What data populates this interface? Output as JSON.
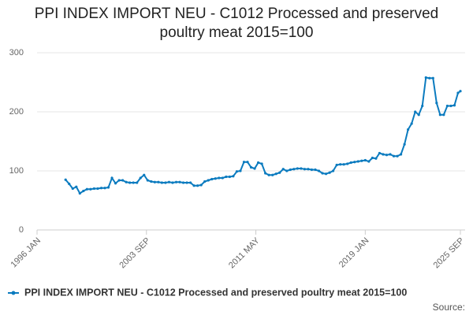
{
  "chart_data": {
    "type": "line",
    "title": "PPI INDEX IMPORT NEU - C1012 Processed and preserved poultry meat 2015=100",
    "source": "Source:",
    "xlim": [
      "1996 JAN",
      "2025 SEP"
    ],
    "xticks": [
      "1996 JAN",
      "2003 SEP",
      "2011 MAY",
      "2019 JAN",
      "2025 SEP"
    ],
    "ylim": [
      0,
      300
    ],
    "yticks": [
      0,
      100,
      200,
      300
    ],
    "grid": true,
    "legend": "bottom",
    "x": [
      "1998 JAN",
      "1998 APR",
      "1998 JUL",
      "1998 OCT",
      "1999 JAN",
      "1999 APR",
      "1999 JUL",
      "1999 OCT",
      "2000 JAN",
      "2000 APR",
      "2000 JUL",
      "2000 OCT",
      "2001 JAN",
      "2001 APR",
      "2001 JUL",
      "2001 OCT",
      "2002 JAN",
      "2002 APR",
      "2002 JUL",
      "2002 OCT",
      "2003 JAN",
      "2003 APR",
      "2003 JUL",
      "2003 OCT",
      "2004 JAN",
      "2004 APR",
      "2004 JUL",
      "2004 OCT",
      "2005 JAN",
      "2005 APR",
      "2005 JUL",
      "2005 OCT",
      "2006 JAN",
      "2006 APR",
      "2006 JUL",
      "2006 OCT",
      "2007 JAN",
      "2007 APR",
      "2007 JUL",
      "2007 OCT",
      "2008 JAN",
      "2008 APR",
      "2008 JUL",
      "2008 OCT",
      "2009 JAN",
      "2009 APR",
      "2009 JUL",
      "2009 OCT",
      "2010 JAN",
      "2010 APR",
      "2010 JUL",
      "2010 OCT",
      "2011 JAN",
      "2011 APR",
      "2011 JUL",
      "2011 OCT",
      "2012 JAN",
      "2012 APR",
      "2012 JUL",
      "2012 OCT",
      "2013 JAN",
      "2013 APR",
      "2013 JUL",
      "2013 OCT",
      "2014 JAN",
      "2014 APR",
      "2014 JUL",
      "2014 OCT",
      "2015 JAN",
      "2015 APR",
      "2015 JUL",
      "2015 OCT",
      "2016 JAN",
      "2016 APR",
      "2016 JUL",
      "2016 OCT",
      "2017 JAN",
      "2017 APR",
      "2017 JUL",
      "2017 OCT",
      "2018 JAN",
      "2018 APR",
      "2018 JUL",
      "2018 OCT",
      "2019 JAN",
      "2019 APR",
      "2019 JUL",
      "2019 OCT",
      "2020 JAN",
      "2020 APR",
      "2020 JUL",
      "2020 OCT",
      "2021 JAN",
      "2021 APR",
      "2021 JUL",
      "2021 OCT",
      "2022 JAN",
      "2022 APR",
      "2022 JUL",
      "2022 OCT",
      "2023 JAN",
      "2023 APR",
      "2023 JUL",
      "2023 OCT",
      "2024 JAN",
      "2024 APR",
      "2024 JUL",
      "2024 OCT",
      "2025 JAN",
      "2025 APR",
      "2025 JUL",
      "2025 SEP"
    ],
    "series": [
      {
        "name": "PPI INDEX IMPORT NEU - C1012 Processed and preserved poultry meat 2015=100",
        "color": "#0b7bbf",
        "values": [
          85,
          78,
          70,
          73,
          62,
          66,
          69,
          69,
          70,
          70,
          71,
          71,
          72,
          88,
          79,
          84,
          84,
          81,
          80,
          80,
          80,
          88,
          93,
          84,
          82,
          81,
          81,
          80,
          80,
          81,
          80,
          81,
          81,
          80,
          80,
          80,
          75,
          75,
          76,
          82,
          84,
          86,
          87,
          88,
          88,
          90,
          90,
          91,
          99,
          100,
          115,
          115,
          106,
          104,
          114,
          112,
          96,
          93,
          93,
          95,
          97,
          103,
          100,
          102,
          103,
          104,
          104,
          103,
          103,
          102,
          102,
          100,
          96,
          95,
          97,
          100,
          110,
          111,
          111,
          112,
          114,
          115,
          116,
          117,
          118,
          116,
          122,
          121,
          130,
          128,
          127,
          128,
          125,
          125,
          128,
          145,
          170,
          180,
          200,
          195,
          210,
          258,
          257,
          257,
          215,
          195,
          195,
          210,
          210,
          211,
          232,
          235
        ]
      }
    ]
  }
}
